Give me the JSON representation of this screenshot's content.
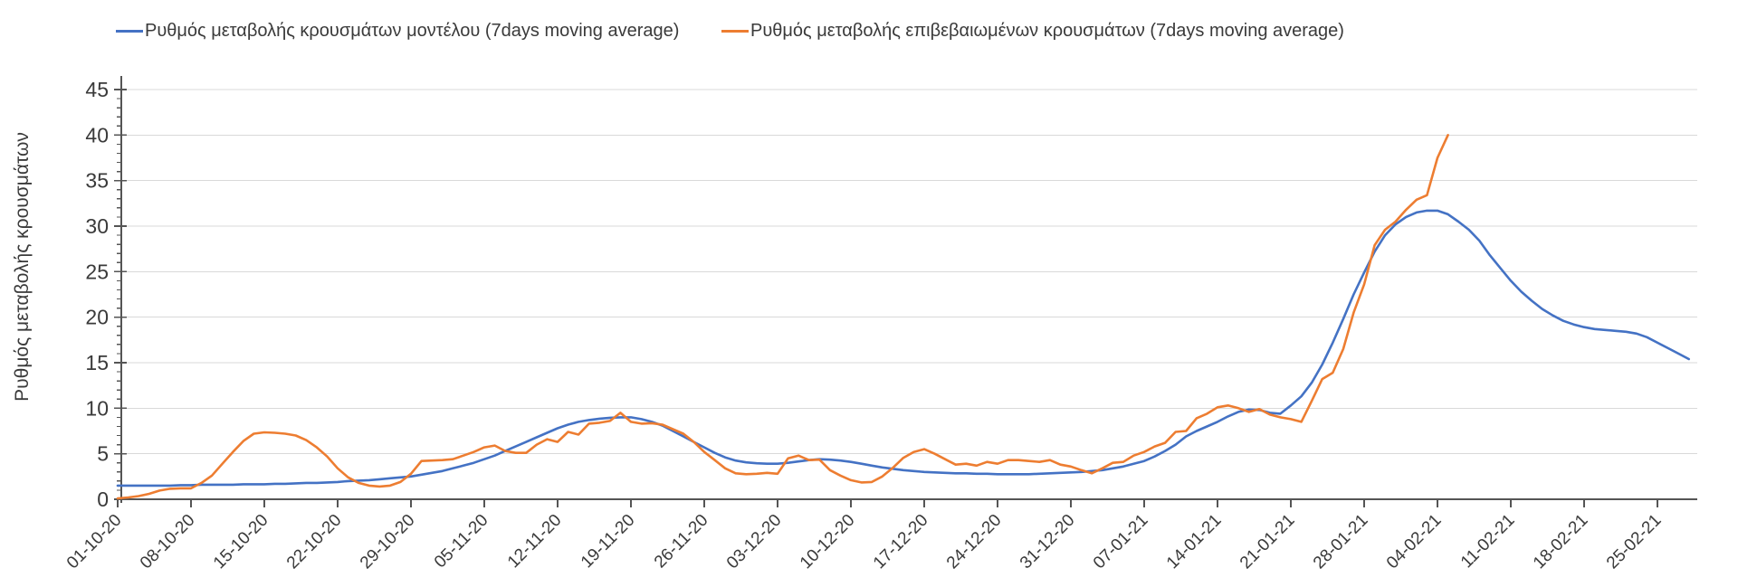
{
  "chart_data": {
    "type": "line",
    "title": "",
    "xlabel": "",
    "ylabel": "Ρυθμός μεταβολής κρουσμάτων",
    "grid": "horizontal",
    "legend_position": "top",
    "ylim": [
      0,
      45
    ],
    "y_tick_step": 5,
    "y_tick_labels": [
      "0",
      "5",
      "10",
      "15",
      "20",
      "25",
      "30",
      "35",
      "40",
      "45"
    ],
    "x_tick_interval_days": 7,
    "x_tick_labels": [
      "01-10-20",
      "08-10-20",
      "15-10-20",
      "22-10-20",
      "29-10-20",
      "05-11-20",
      "12-11-20",
      "19-11-20",
      "26-11-20",
      "03-12-20",
      "10-12-20",
      "17-12-20",
      "24-12-20",
      "31-12-20",
      "07-01-21",
      "14-01-21",
      "21-01-21",
      "28-01-21",
      "04-02-21",
      "11-02-21",
      "18-02-21",
      "25-02-21"
    ],
    "series": [
      {
        "name": "Ρυθμός μεταβολής κρουσμάτων μοντέλου (7days moving average)",
        "color": "#4472C4",
        "start_day": 0,
        "values": [
          1.5,
          1.5,
          1.5,
          1.5,
          1.5,
          1.5,
          1.55,
          1.55,
          1.6,
          1.6,
          1.6,
          1.6,
          1.65,
          1.65,
          1.65,
          1.7,
          1.7,
          1.75,
          1.8,
          1.8,
          1.85,
          1.9,
          2.0,
          2.05,
          2.1,
          2.2,
          2.3,
          2.4,
          2.5,
          2.7,
          2.9,
          3.1,
          3.4,
          3.7,
          4.0,
          4.4,
          4.8,
          5.3,
          5.8,
          6.3,
          6.8,
          7.3,
          7.8,
          8.2,
          8.5,
          8.7,
          8.85,
          8.95,
          9.0,
          9.0,
          8.8,
          8.5,
          8.1,
          7.5,
          6.9,
          6.3,
          5.7,
          5.1,
          4.6,
          4.25,
          4.05,
          3.95,
          3.9,
          3.9,
          4.0,
          4.15,
          4.3,
          4.4,
          4.35,
          4.25,
          4.1,
          3.9,
          3.7,
          3.5,
          3.35,
          3.2,
          3.1,
          3.0,
          2.95,
          2.9,
          2.85,
          2.85,
          2.8,
          2.8,
          2.75,
          2.75,
          2.75,
          2.75,
          2.8,
          2.85,
          2.9,
          2.95,
          3.0,
          3.1,
          3.2,
          3.4,
          3.6,
          3.9,
          4.2,
          4.7,
          5.3,
          6.0,
          6.9,
          7.5,
          8.0,
          8.5,
          9.1,
          9.6,
          9.85,
          9.8,
          9.5,
          9.4,
          10.3,
          11.3,
          12.8,
          14.8,
          17.2,
          19.8,
          22.5,
          24.9,
          27.2,
          29.0,
          30.2,
          31.0,
          31.5,
          31.7,
          31.7,
          31.3,
          30.5,
          29.6,
          28.4,
          26.8,
          25.4,
          24.0,
          22.8,
          21.8,
          20.9,
          20.2,
          19.6,
          19.2,
          18.9,
          18.7,
          18.6,
          18.5,
          18.4,
          18.2,
          17.8,
          17.2,
          16.6,
          16.0,
          15.4
        ]
      },
      {
        "name": "Ρυθμός μεταβολής επιβεβαιωμένων κρουσμάτων (7days moving average)",
        "color": "#ED7D31",
        "start_day": 0,
        "values": [
          0.1,
          0.2,
          0.35,
          0.6,
          0.95,
          1.15,
          1.2,
          1.2,
          1.8,
          2.6,
          3.9,
          5.2,
          6.4,
          7.2,
          7.35,
          7.3,
          7.2,
          7.0,
          6.5,
          5.7,
          4.7,
          3.4,
          2.4,
          1.8,
          1.5,
          1.4,
          1.5,
          1.9,
          2.8,
          4.2,
          4.25,
          4.3,
          4.4,
          4.8,
          5.2,
          5.7,
          5.9,
          5.3,
          5.1,
          5.1,
          6.0,
          6.6,
          6.3,
          7.4,
          7.1,
          8.3,
          8.4,
          8.6,
          9.5,
          8.5,
          8.3,
          8.35,
          8.2,
          7.7,
          7.2,
          6.3,
          5.2,
          4.3,
          3.4,
          2.85,
          2.75,
          2.8,
          2.9,
          2.8,
          4.5,
          4.8,
          4.3,
          4.35,
          3.2,
          2.6,
          2.1,
          1.85,
          1.9,
          2.5,
          3.45,
          4.55,
          5.2,
          5.5,
          5.0,
          4.4,
          3.8,
          3.9,
          3.7,
          4.1,
          3.9,
          4.3,
          4.3,
          4.2,
          4.1,
          4.3,
          3.8,
          3.6,
          3.2,
          2.85,
          3.4,
          4.0,
          4.1,
          4.8,
          5.2,
          5.8,
          6.2,
          7.4,
          7.5,
          8.9,
          9.4,
          10.1,
          10.3,
          10.0,
          9.6,
          9.9,
          9.3,
          9.0,
          8.8,
          8.5,
          10.8,
          13.2,
          13.9,
          16.5,
          20.5,
          23.6,
          27.9,
          29.6,
          30.5,
          31.8,
          32.9,
          33.4,
          37.5,
          40.0
        ]
      }
    ]
  },
  "colors": {
    "model_line": "#4472C4",
    "confirmed_line": "#ED7D31",
    "gridline": "#D9D9D9",
    "axis": "#555555",
    "text": "#3a3a3a",
    "background": "#ffffff"
  }
}
